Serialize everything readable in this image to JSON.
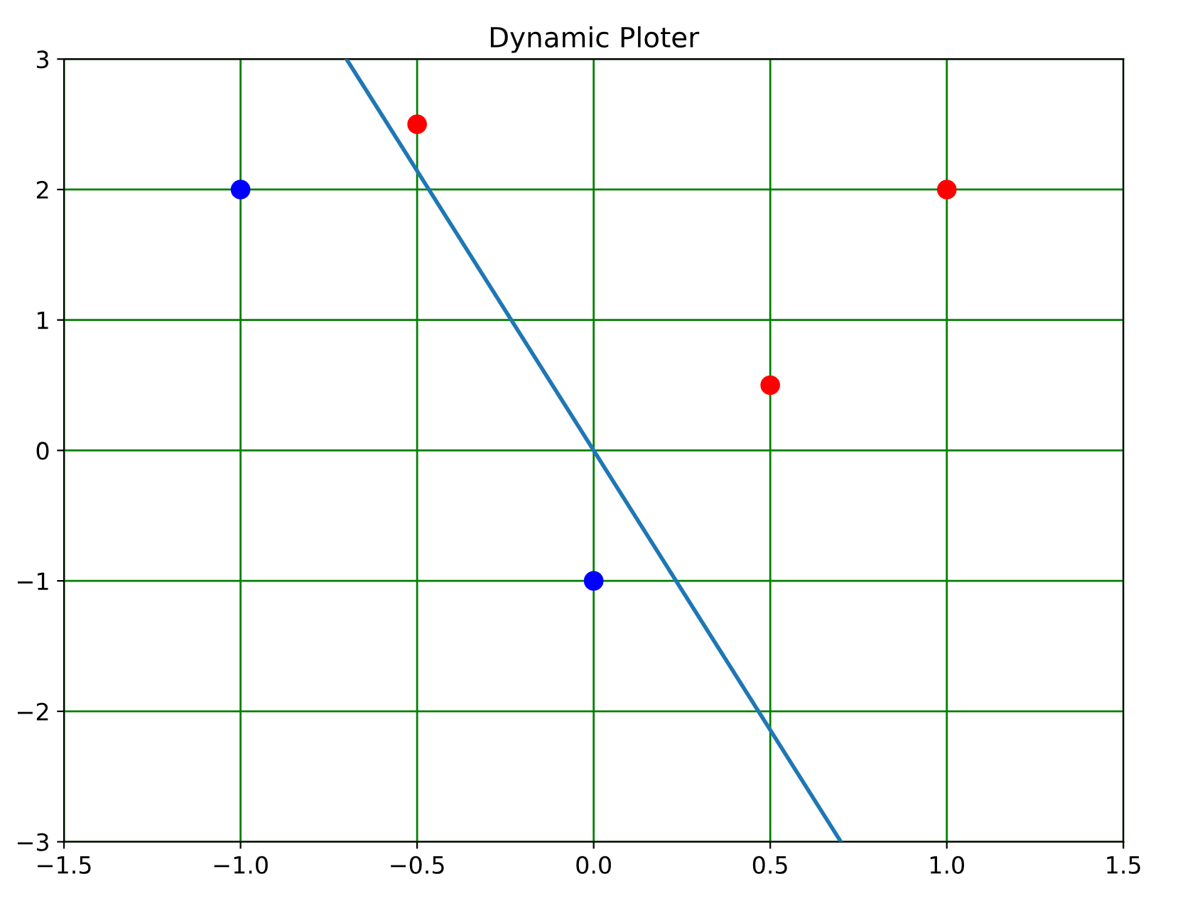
{
  "chart_data": {
    "type": "scatter",
    "title": "Dynamic Ploter",
    "series": [
      {
        "type": "line",
        "color": "#1f77b4",
        "x": [
          -0.7,
          0.7
        ],
        "values": [
          3,
          -3
        ],
        "marker": "none"
      },
      {
        "color": "#0000ff",
        "x": [
          -1,
          0
        ],
        "values": [
          2,
          -1
        ],
        "marker": "circle"
      },
      {
        "color": "#ff0000",
        "x": [
          -0.5,
          0.5,
          1
        ],
        "values": [
          2.5,
          0.5,
          2
        ],
        "marker": "circle"
      }
    ],
    "xlim": [
      -1.5,
      1.5
    ],
    "ylim": [
      -3,
      3
    ],
    "xticks": [
      -1.5,
      {
        "value": -1,
        "label": "−1.0"
      },
      -0.5,
      {
        "value": 0,
        "label": "0.0"
      },
      0.5,
      {
        "value": 1,
        "label": "1.0"
      },
      1.5
    ],
    "yticks": [
      -3,
      -2,
      -1,
      0,
      1,
      2,
      3
    ],
    "grid": true
  }
}
